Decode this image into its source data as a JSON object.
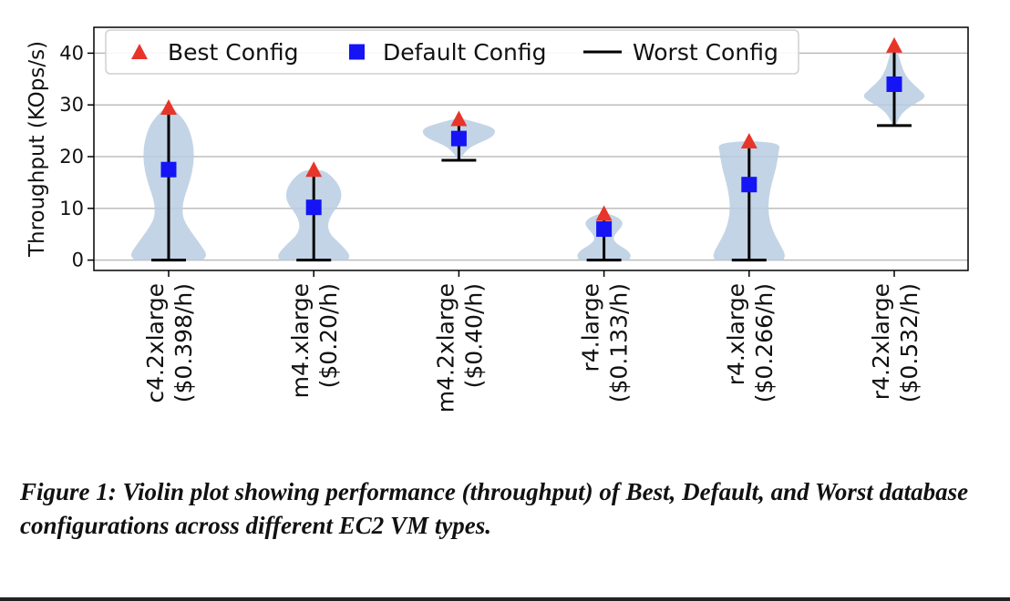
{
  "chart_data": {
    "type": "violin",
    "ylabel": "Throughput (KOps/s)",
    "ylim": [
      -2,
      45
    ],
    "yticks": [
      0,
      10,
      20,
      30,
      40
    ],
    "grid": true,
    "legend_position": "top-left",
    "legend": [
      {
        "label": "Best Config",
        "marker": "triangle",
        "color": "#e8352a"
      },
      {
        "label": "Default Config",
        "marker": "square",
        "color": "#1414f5"
      },
      {
        "label": "Worst Config",
        "marker": "line",
        "color": "#000000"
      }
    ],
    "categories": [
      {
        "name": "c4.2xlarge",
        "price": "($0.398/h)"
      },
      {
        "name": "m4.xlarge",
        "price": "($0.20/h)"
      },
      {
        "name": "m4.2xlarge",
        "price": "($0.40/h)"
      },
      {
        "name": "r4.large",
        "price": "($0.133/h)"
      },
      {
        "name": "r4.xlarge",
        "price": "($0.266/h)"
      },
      {
        "name": "r4.2xlarge",
        "price": "($0.532/h)"
      }
    ],
    "series": [
      {
        "name": "Best Config",
        "values": [
          29.5,
          17.5,
          27.3,
          9.0,
          23.0,
          41.5
        ]
      },
      {
        "name": "Default Config",
        "values": [
          17.5,
          10.2,
          23.5,
          6.0,
          14.6,
          34.0
        ]
      },
      {
        "name": "Worst Config",
        "values": [
          0,
          0,
          19.3,
          0,
          0,
          26.0
        ]
      }
    ],
    "violin_color": "#b9cde2",
    "violins": [
      [
        [
          0,
          7.5
        ],
        [
          1,
          8.5
        ],
        [
          3,
          7.0
        ],
        [
          6,
          4.5
        ],
        [
          8,
          3.2
        ],
        [
          10,
          3.0
        ],
        [
          12,
          3.4
        ],
        [
          14,
          4.2
        ],
        [
          17,
          5.2
        ],
        [
          20,
          5.6
        ],
        [
          23,
          5.3
        ],
        [
          26,
          4.2
        ],
        [
          28,
          2.5
        ],
        [
          29.5,
          0.8
        ]
      ],
      [
        [
          0,
          7.5
        ],
        [
          1,
          8.0
        ],
        [
          3,
          6.0
        ],
        [
          5,
          3.5
        ],
        [
          7,
          3.0
        ],
        [
          9,
          4.0
        ],
        [
          11,
          5.8
        ],
        [
          13,
          6.2
        ],
        [
          15,
          5.2
        ],
        [
          17,
          3.0
        ],
        [
          17.5,
          1.0
        ]
      ],
      [
        [
          19.3,
          0.3
        ],
        [
          20,
          0.6
        ],
        [
          21.5,
          2.0
        ],
        [
          22.5,
          4.0
        ],
        [
          23.5,
          6.8
        ],
        [
          24.5,
          8.0
        ],
        [
          25.5,
          7.8
        ],
        [
          26.5,
          4.5
        ],
        [
          27.3,
          1.0
        ]
      ],
      [
        [
          0,
          5.5
        ],
        [
          1,
          6.0
        ],
        [
          2,
          5.0
        ],
        [
          3,
          3.0
        ],
        [
          4,
          2.0
        ],
        [
          5,
          2.4
        ],
        [
          6,
          3.5
        ],
        [
          7,
          4.2
        ],
        [
          8,
          3.6
        ],
        [
          9,
          1.2
        ]
      ],
      [
        [
          0,
          7.5
        ],
        [
          1,
          8.0
        ],
        [
          3,
          6.8
        ],
        [
          6,
          5.0
        ],
        [
          9,
          4.2
        ],
        [
          12,
          4.3
        ],
        [
          15,
          5.0
        ],
        [
          18,
          6.0
        ],
        [
          21,
          6.5
        ],
        [
          22.5,
          6.8
        ],
        [
          23,
          1.5
        ]
      ],
      [
        [
          26,
          0.3
        ],
        [
          27,
          0.8
        ],
        [
          28.5,
          1.8
        ],
        [
          30,
          4.0
        ],
        [
          31.5,
          7.2
        ],
        [
          33,
          5.5
        ],
        [
          35,
          3.0
        ],
        [
          37,
          1.8
        ],
        [
          39,
          1.2
        ],
        [
          41.5,
          0.3
        ]
      ]
    ]
  },
  "caption": "Figure 1: Violin plot showing performance (throughput) of Best, Default, and Worst database configurations across different EC2 VM types."
}
